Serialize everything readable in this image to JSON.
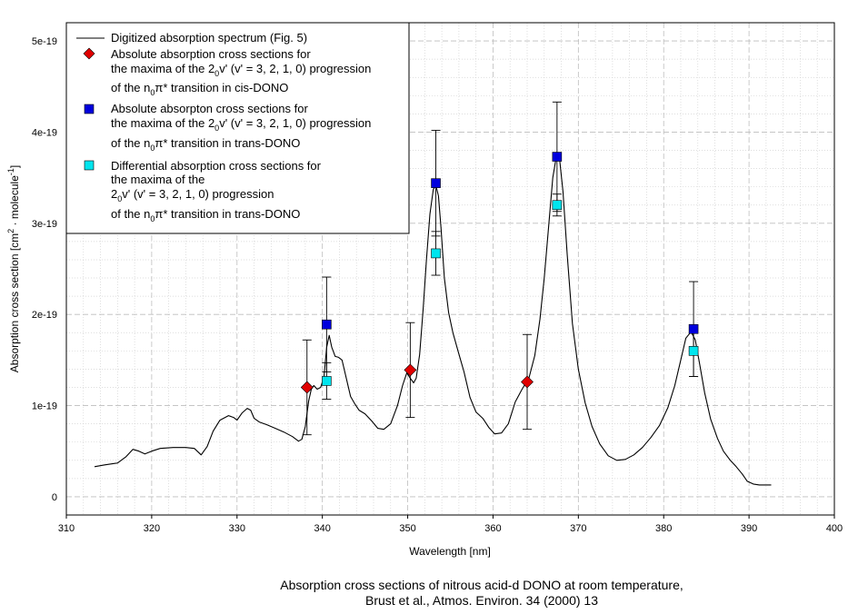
{
  "chart_data": {
    "type": "line",
    "title": "",
    "xlabel": "Wavelength [nm]",
    "ylabel": "Absorption cross section [cm2 molecule-1]",
    "ylabel_parts": {
      "a": "Absorption cross section [cm",
      "b": "2",
      "c": " · molecule",
      "d": "-1",
      "e": "]"
    },
    "xlim": [
      310,
      400
    ],
    "ylim": [
      -2e-20,
      5.2e-19
    ],
    "x_ticks": [
      310,
      320,
      330,
      340,
      350,
      360,
      370,
      380,
      390,
      400
    ],
    "x_tick_labels": [
      "310",
      "320",
      "330",
      "340",
      "350",
      "360",
      "370",
      "380",
      "390",
      "400"
    ],
    "y_ticks": [
      0,
      1e-19,
      2e-19,
      3e-19,
      4e-19,
      5e-19
    ],
    "y_tick_labels": [
      "0",
      "1e-19",
      "2e-19",
      "3e-19",
      "4e-19",
      "5e-19"
    ],
    "grid": true,
    "legend_position": "top-left",
    "series": [
      {
        "name": "Digitized absorption spectrum (Fig. 5)",
        "kind": "line",
        "color": "#000000",
        "x": [
          313.3,
          314.5,
          316.0,
          317.0,
          317.8,
          318.5,
          319.2,
          320.0,
          321.0,
          322.5,
          324.0,
          325.0,
          325.8,
          326.5,
          327.2,
          328.0,
          329.0,
          329.6,
          330.0,
          330.6,
          331.2,
          331.6,
          332.0,
          332.6,
          333.5,
          334.5,
          335.5,
          336.5,
          337.2,
          337.6,
          338.0,
          338.4,
          338.7,
          339.0,
          339.4,
          339.8,
          340.2,
          340.5,
          340.8,
          341.1,
          341.5,
          341.9,
          342.3,
          342.8,
          343.3,
          343.8,
          344.3,
          345.0,
          345.8,
          346.5,
          347.2,
          348.0,
          348.8,
          349.4,
          349.9,
          350.3,
          350.7,
          351.0,
          351.4,
          351.8,
          352.2,
          352.6,
          353.0,
          353.3,
          353.6,
          353.9,
          354.3,
          354.8,
          355.3,
          355.9,
          356.6,
          357.3,
          358.0,
          358.8,
          359.5,
          360.2,
          361.0,
          361.8,
          362.6,
          363.4,
          364.2,
          364.9,
          365.5,
          366.0,
          366.5,
          367.0,
          367.4,
          367.8,
          368.2,
          368.7,
          369.3,
          370.0,
          370.8,
          371.6,
          372.5,
          373.5,
          374.5,
          375.5,
          376.5,
          377.5,
          378.5,
          379.5,
          380.5,
          381.3,
          382.0,
          382.6,
          383.2,
          383.7,
          384.2,
          384.8,
          385.5,
          386.3,
          387.0,
          387.8,
          388.5,
          389.2,
          389.8,
          390.5,
          391.2,
          392.0,
          392.6
        ],
        "y": [
          0.33,
          0.35,
          0.37,
          0.44,
          0.52,
          0.5,
          0.47,
          0.5,
          0.53,
          0.54,
          0.54,
          0.53,
          0.46,
          0.55,
          0.72,
          0.84,
          0.89,
          0.87,
          0.84,
          0.92,
          0.97,
          0.95,
          0.86,
          0.82,
          0.79,
          0.75,
          0.71,
          0.66,
          0.61,
          0.63,
          0.77,
          1.05,
          1.18,
          1.22,
          1.18,
          1.2,
          1.32,
          1.64,
          1.77,
          1.64,
          1.54,
          1.53,
          1.5,
          1.3,
          1.1,
          1.02,
          0.95,
          0.91,
          0.83,
          0.75,
          0.74,
          0.8,
          1.0,
          1.22,
          1.36,
          1.3,
          1.25,
          1.3,
          1.56,
          2.05,
          2.6,
          3.1,
          3.37,
          3.42,
          3.3,
          2.95,
          2.4,
          2.02,
          1.8,
          1.6,
          1.37,
          1.09,
          0.93,
          0.86,
          0.76,
          0.69,
          0.7,
          0.8,
          1.04,
          1.18,
          1.3,
          1.55,
          1.95,
          2.4,
          2.95,
          3.5,
          3.72,
          3.7,
          3.35,
          2.65,
          1.9,
          1.4,
          1.03,
          0.77,
          0.58,
          0.45,
          0.4,
          0.41,
          0.46,
          0.54,
          0.65,
          0.78,
          0.98,
          1.22,
          1.5,
          1.74,
          1.81,
          1.72,
          1.46,
          1.14,
          0.85,
          0.64,
          0.5,
          0.4,
          0.33,
          0.25,
          0.17,
          0.14,
          0.13,
          0.13,
          0.13
        ]
      },
      {
        "name": "Absolute absorption cross sections for the maxima of the 20v' (v' = 3, 2, 1, 0) progression of the n0π* transition in cis-DONO",
        "kind": "marker",
        "marker": "diamond",
        "color": "#e00000",
        "x": [
          338.2,
          350.3,
          364.0
        ],
        "y": [
          1.2,
          1.39,
          1.26
        ],
        "err": [
          0.52,
          0.52,
          0.52
        ]
      },
      {
        "name": "Absolute absorpton cross sections for the maxima of the 20v' (v' = 3, 2, 1, 0) progression of the n0π* transition in trans-DONO",
        "kind": "marker",
        "marker": "square",
        "color": "#0000dd",
        "x": [
          340.5,
          353.3,
          367.5,
          383.5
        ],
        "y": [
          1.89,
          3.44,
          3.73,
          1.84
        ],
        "err": [
          0.52,
          0.58,
          0.6,
          0.52
        ]
      },
      {
        "name": "Differential absorption cross sections for the maxima of the 20v' (v' = 3, 2, 1, 0) progression of the n0π* transition in trans-DONO",
        "kind": "marker",
        "marker": "square",
        "color": "#00e5ee",
        "x": [
          340.5,
          353.3,
          367.5,
          383.5
        ],
        "y": [
          1.27,
          2.67,
          3.2,
          1.6
        ],
        "err": [
          0.2,
          0.24,
          0.12,
          0.28
        ]
      }
    ],
    "y_scale_note": "y values in units of 1e-19"
  },
  "legend": {
    "line": {
      "text": "Digitized absorption spectrum (Fig. 5)"
    },
    "cis": {
      "l1": "Absolute absorption cross sections for",
      "l2a": "the maxima of the 2",
      "l2s": "0",
      "l2b": "v' (v' = 3, 2, 1, 0) progression",
      "l3a": "of the n",
      "l3s": "0",
      "l3b": "π* transition in cis-DONO"
    },
    "abs": {
      "l1": "Absolute absorpton cross sections for",
      "l2a": "the maxima of the 2",
      "l2s": "0",
      "l2b": "v' (v' = 3, 2, 1, 0) progression",
      "l3a": "of the n",
      "l3s": "0",
      "l3b": "π* transition in trans-DONO"
    },
    "diff": {
      "l1": "Differential absorption cross sections for",
      "l2": "the maxima of the",
      "l3a": "2",
      "l3s": "0",
      "l3b": "v' (v' = 3, 2, 1, 0) progression",
      "l4a": "of the n",
      "l4s": "0",
      "l4b": "π* transition in trans-DONO"
    }
  },
  "caption": {
    "line1": "Absorption cross sections of nitrous acid-d DONO at room temperature,",
    "line2": "Brust et al., Atmos. Environ. 34 (2000) 13"
  }
}
